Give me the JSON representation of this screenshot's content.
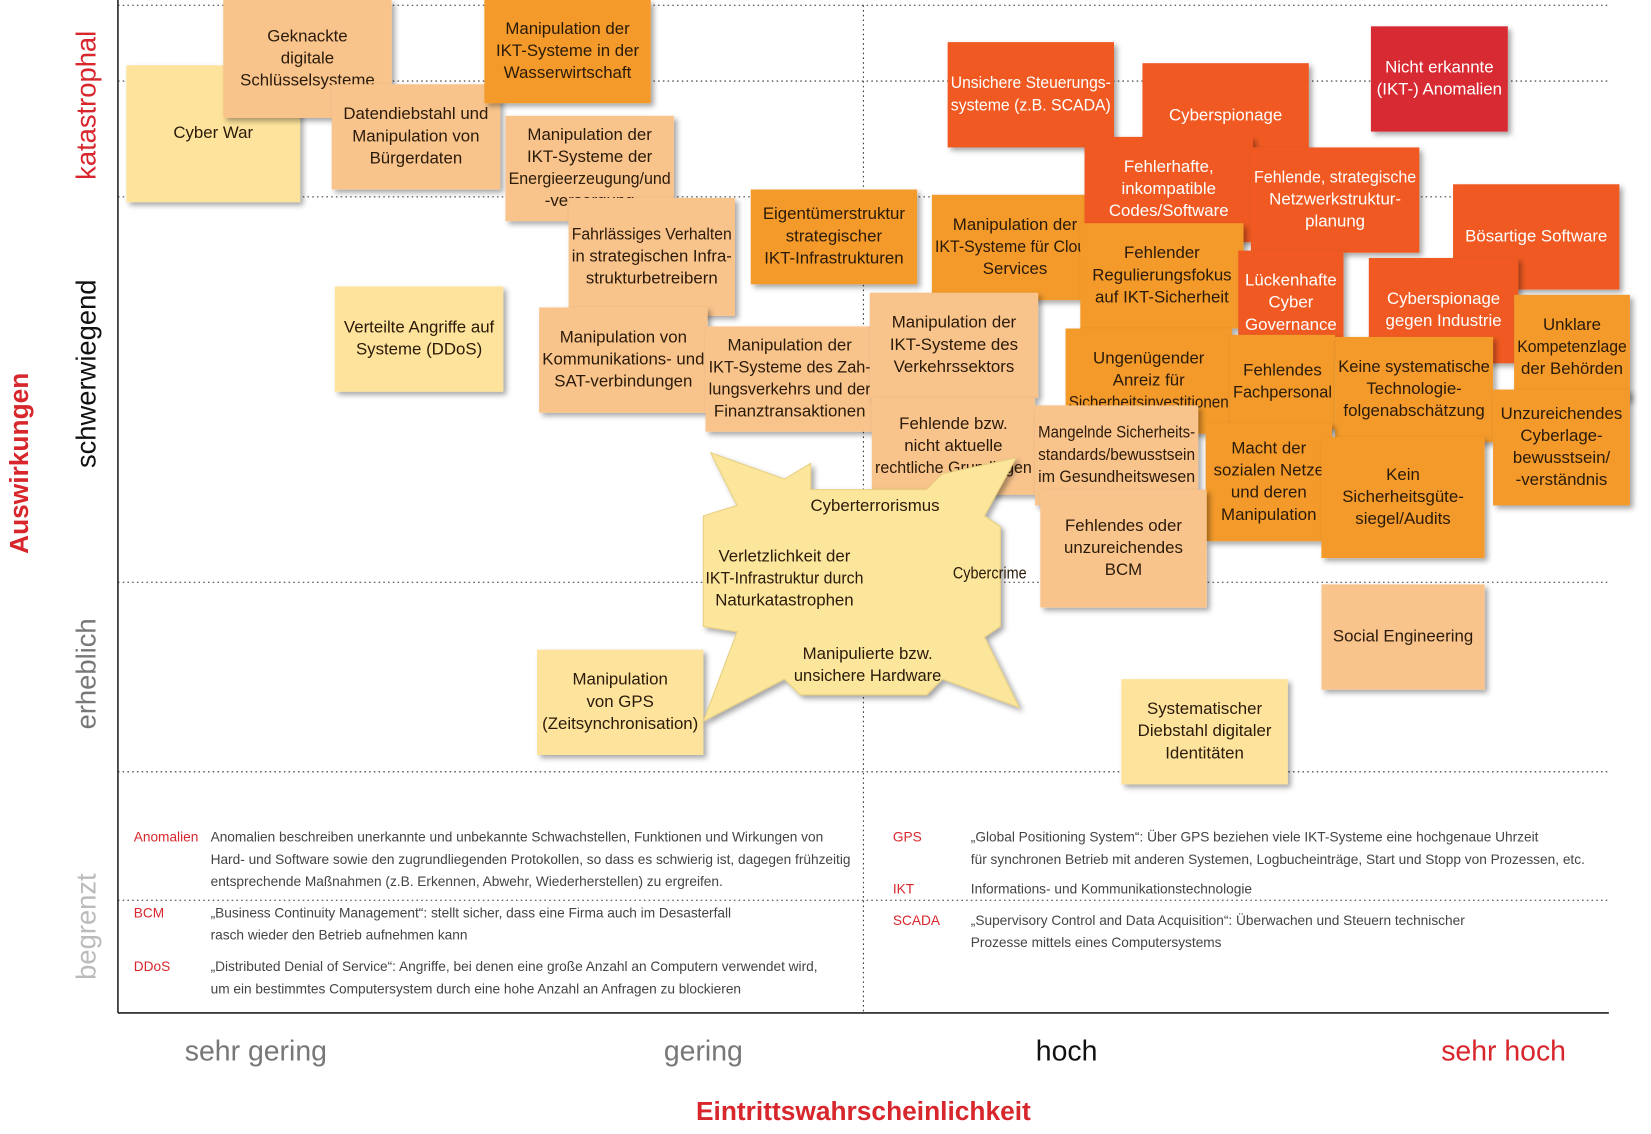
{
  "y_axis": {
    "title": "Auswirkungen",
    "levels": [
      "katastrophal",
      "schwerwiegend",
      "erheblich",
      "begrenzt"
    ]
  },
  "x_axis": {
    "title": "Eintrittswahrscheinlichkeit",
    "levels": [
      "sehr gering",
      "gering",
      "hoch",
      "sehr hoch"
    ]
  },
  "notes": [
    {
      "lines": [
        "Cyber War"
      ],
      "color": "#fde39b"
    },
    {
      "lines": [
        "Geknackte",
        "digitale",
        "Schlüsselsysteme"
      ],
      "color": "#f9c48c"
    },
    {
      "lines": [
        "Datendiebstahl und",
        "Manipulation von",
        "Bürgerdaten"
      ],
      "color": "#f9c48c"
    },
    {
      "lines": [
        "Manipulation der",
        "IKT-Systeme in der",
        "Wasserwirtschaft"
      ],
      "color": "#f39a2c"
    },
    {
      "lines": [
        "Manipulation der",
        "IKT-Systeme der",
        "Energieerzeugung/und",
        "-versorgung"
      ],
      "color": "#f9c48c"
    },
    {
      "lines": [
        "Fahrlässiges Verhalten",
        "in strategischen Infra-",
        "strukturbetreibern"
      ],
      "color": "#f9c48c"
    },
    {
      "lines": [
        "Eigentümerstruktur",
        "strategischer",
        "IKT-Infrastrukturen"
      ],
      "color": "#f39a2c"
    },
    {
      "lines": [
        "Manipulation der",
        "IKT-Systeme für Cloud",
        "Services"
      ],
      "color": "#f39a2c"
    },
    {
      "lines": [
        "Verteilte Angriffe auf",
        "Systeme (DDoS)"
      ],
      "color": "#fde39b"
    },
    {
      "lines": [
        "Manipulation von",
        "Kommunikations- und",
        "SAT-verbindungen"
      ],
      "color": "#f9c48c"
    },
    {
      "lines": [
        "Manipulation der",
        "IKT-Systeme des Zah-",
        "lungsverkehrs und der",
        "Finanztransaktionen"
      ],
      "color": "#f9c48c"
    },
    {
      "lines": [
        "Manipulation der",
        "IKT-Systeme des",
        "Verkehrssektors"
      ],
      "color": "#f9c48c"
    },
    {
      "lines": [
        "Fehlende bzw.",
        "nicht aktuelle",
        "rechtliche Grundlagen"
      ],
      "color": "#f9c48c"
    },
    {
      "lines": [
        "Unsichere Steuerungs-",
        "systeme (z.B. SCADA)"
      ],
      "color": "#f05a24"
    },
    {
      "lines": [
        "Cyberspionage"
      ],
      "color": "#f05a24"
    },
    {
      "lines": [
        "Nicht erkannte",
        "(IKT-) Anomalien"
      ],
      "color": "#d82a30"
    },
    {
      "lines": [
        "Fehlerhafte,",
        "inkompatible",
        "Codes/Software"
      ],
      "color": "#f05a24"
    },
    {
      "lines": [
        "Fehlende, strategische",
        "Netzwerkstruktur-",
        "planung"
      ],
      "color": "#f05a24"
    },
    {
      "lines": [
        "Bösartige Software"
      ],
      "color": "#f05a24"
    },
    {
      "lines": [
        "Fehlender",
        "Regulierungsfokus",
        "auf IKT-Sicherheit"
      ],
      "color": "#f39a2c"
    },
    {
      "lines": [
        "Lückenhafte",
        "Cyber",
        "Governance"
      ],
      "color": "#f05a24"
    },
    {
      "lines": [
        "Cyberspionage",
        "gegen Industrie"
      ],
      "color": "#f05a24"
    },
    {
      "lines": [
        "Unklare",
        "Kompetenzlage",
        "der Behörden"
      ],
      "color": "#f39a2c"
    },
    {
      "lines": [
        "Ungenügender",
        "Anreiz für",
        "Sicherheitsinvestitionen"
      ],
      "color": "#f39a2c"
    },
    {
      "lines": [
        "Fehlendes",
        "Fachpersonal"
      ],
      "color": "#f39a2c"
    },
    {
      "lines": [
        "Keine systematische",
        "Technologie-",
        "folgenabschätzung"
      ],
      "color": "#f39a2c"
    },
    {
      "lines": [
        "Unzureichendes",
        "Cyberlage-",
        "bewusstsein/",
        "-verständnis"
      ],
      "color": "#f39a2c"
    },
    {
      "lines": [
        "Mangelnde Sicherheits-",
        "standards/bewusstsein",
        "im Gesundheitswesen"
      ],
      "color": "#f9c48c"
    },
    {
      "lines": [
        "Macht der",
        "sozialen Netze",
        "und deren",
        "Manipulation"
      ],
      "color": "#f39a2c"
    },
    {
      "lines": [
        "Kein",
        "Sicherheitsgüte-",
        "siegel/Audits"
      ],
      "color": "#f39a2c"
    },
    {
      "lines": [
        "Fehlendes oder",
        "unzureichendes",
        "BCM"
      ],
      "color": "#f9c48c"
    },
    {
      "lines": [
        "Social Engineering"
      ],
      "color": "#f9c48c"
    },
    {
      "lines": [
        "Manipulation",
        "von GPS",
        "(Zeitsynchronisation)"
      ],
      "color": "#fde39b"
    },
    {
      "lines": [
        "Systematischer",
        "Diebstahl digitaler",
        "Identitäten"
      ],
      "color": "#fde39b"
    }
  ],
  "center_cluster": [
    {
      "lines": [
        "Cyberterrorismus"
      ]
    },
    {
      "lines": [
        "Verletzlichkeit der",
        "IKT-Infrastruktur durch",
        "Naturkatastrophen"
      ]
    },
    {
      "lines": [
        "Cybercrime"
      ]
    },
    {
      "lines": [
        "Manipulierte bzw.",
        "unsichere Hardware"
      ]
    }
  ],
  "glossary": [
    {
      "term": "Anomalien",
      "lines": [
        "Anomalien beschreiben unerkannte und unbekannte Schwachstellen, Funktionen und Wirkungen von",
        "Hard- und Software sowie den zugrundliegenden Protokollen, so dass es schwierig ist, dagegen frühzeitig",
        "entsprechende Maßnahmen (z.B. Erkennen, Abwehr, Wiederherstellen) zu ergreifen."
      ]
    },
    {
      "term": "BCM",
      "lines": [
        "„Business Continuity Management“: stellt sicher, dass eine Firma auch im Desasterfall",
        "rasch wieder den Betrieb aufnehmen kann"
      ]
    },
    {
      "term": "DDoS",
      "lines": [
        "„Distributed Denial of Service“: Angriffe, bei denen eine große Anzahl an Computern verwendet wird,",
        "um ein bestimmtes Computersystem durch eine hohe Anzahl an Anfragen zu blockieren"
      ]
    },
    {
      "term": "GPS",
      "lines": [
        "„Global Positioning System“: Über GPS beziehen viele IKT-Systeme eine hochgenaue Uhrzeit",
        "für synchronen Betrieb mit anderen Systemen, Logbucheinträge, Start und Stopp von Prozessen, etc."
      ]
    },
    {
      "term": "IKT",
      "lines": [
        "Informations- und Kommunikationstechnologie"
      ]
    },
    {
      "term": "SCADA",
      "lines": [
        "„Supervisory Control and Data Acquisition“: Überwachen und Steuern technischer",
        "Prozesse mittels eines Computersystems"
      ]
    }
  ]
}
